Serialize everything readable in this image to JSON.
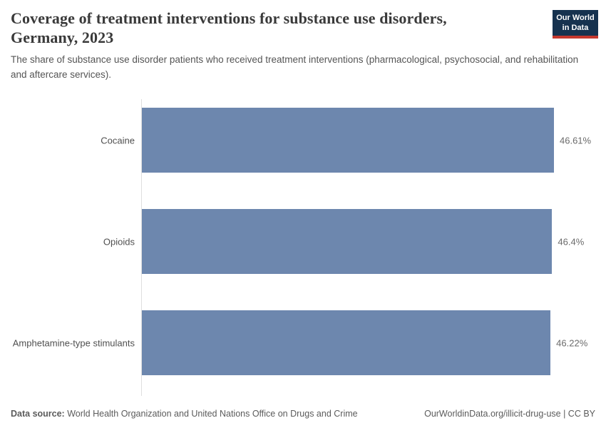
{
  "header": {
    "title_lines": [
      "Coverage of treatment interventions for substance use disorders,",
      "Germany, 2023"
    ],
    "subtitle": "The share of substance use disorder patients who received treatment interventions (pharmacological, psychosocial, and rehabilitation and aftercare services).",
    "logo": {
      "line1": "Our World",
      "line2": "in Data",
      "bg_color": "#16324f",
      "accent_color": "#c5382e"
    }
  },
  "chart_data": {
    "type": "bar",
    "orientation": "horizontal",
    "title": "Coverage of treatment interventions for substance use disorders, Germany, 2023",
    "subtitle": "The share of substance use disorder patients who received treatment interventions (pharmacological, psychosocial, and rehabilitation and aftercare services).",
    "categories": [
      "Cocaine",
      "Opioids",
      "Amphetamine-type stimulants"
    ],
    "values": [
      46.61,
      46.4,
      46.22
    ],
    "value_labels": [
      "46.61%",
      "46.4%",
      "46.22%"
    ],
    "unit": "%",
    "xlim": [
      0,
      46.61
    ],
    "grid": false,
    "legend": "none",
    "bar_color": "#6d87ae",
    "axis_line_color": "#dedede"
  },
  "footer": {
    "source_label": "Data source:",
    "source_text": " World Health Organization and United Nations Office on Drugs and Crime",
    "credit": "OurWorldinData.org/illicit-drug-use | CC BY"
  }
}
